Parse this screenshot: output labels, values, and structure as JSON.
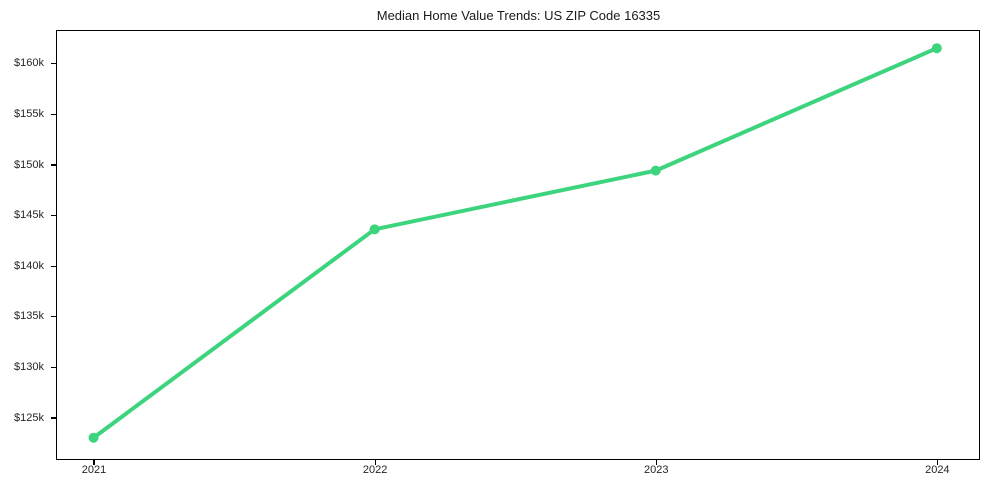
{
  "chart_data": {
    "type": "line",
    "title": "Median Home Value Trends: US ZIP Code 16335",
    "x": [
      2021,
      2022,
      2023,
      2024
    ],
    "values": [
      123000,
      143600,
      149400,
      161500
    ],
    "x_tick_labels": [
      "2021",
      "2022",
      "2023",
      "2024"
    ],
    "y_ticks": [
      125000,
      130000,
      135000,
      140000,
      145000,
      150000,
      155000,
      160000
    ],
    "y_tick_labels": [
      "$125k",
      "$130k",
      "$135k",
      "$140k",
      "$145k",
      "$150k",
      "$155k",
      "$160k"
    ],
    "xlabel": "",
    "ylabel": "",
    "xlim": [
      2020.87,
      2024.15
    ],
    "ylim": [
      120900,
      163200
    ],
    "grid": false,
    "legend": "none",
    "line_color": "#3dd47e",
    "marker": "circle",
    "line_width": 4,
    "marker_radius": 5,
    "spine_color": "#000000",
    "tick_label_color": "#262626",
    "title_color": "#1a1a1a",
    "background_color": "#ffffff"
  }
}
